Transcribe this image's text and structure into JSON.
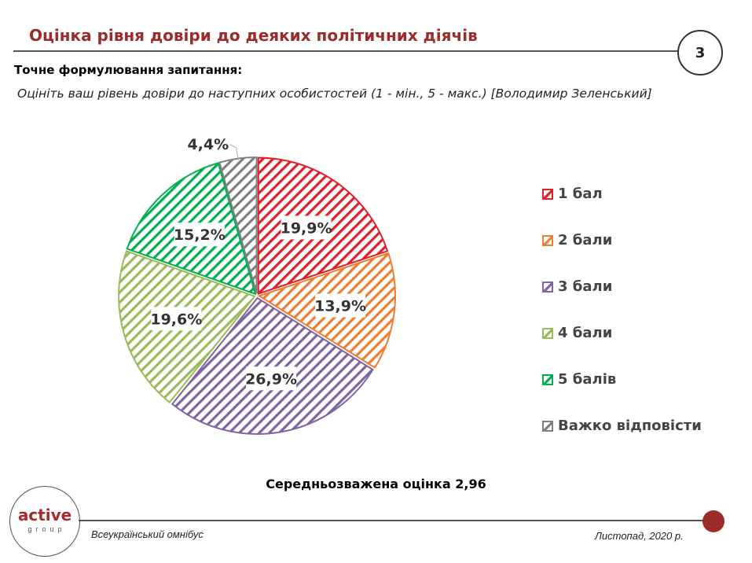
{
  "header": {
    "title": "Оцінка рівня довіри до деяких політичних діячів",
    "page_number": "3"
  },
  "question": {
    "label": "Точне формулювання запитання:",
    "text": "Оцініть ваш рівень довіри до наступних особистостей (1 - мін., 5 - макс.) [Володимир Зеленський]"
  },
  "chart_data": {
    "type": "pie",
    "categories": [
      "1 бал",
      "2 бали",
      "3 бали",
      "4 бали",
      "5 балів",
      "Важко відповісти"
    ],
    "values": [
      19.9,
      13.9,
      26.9,
      19.6,
      15.2,
      4.4
    ],
    "labels": [
      "19,9%",
      "13,9%",
      "26,9%",
      "19,6%",
      "15,2%",
      "4,4%"
    ],
    "colors": [
      "#e01f26",
      "#ed7d31",
      "#8064a2",
      "#9bbb59",
      "#00b050",
      "#7f7f7f"
    ],
    "fill": "diagonal-hatch",
    "legend_position": "right"
  },
  "summary": "Середньозважена оцінка 2,96",
  "footer": {
    "left": "Всеукраїнський омнібус",
    "right": "Листопад, 2020 р."
  },
  "logo": {
    "main": "active",
    "sub": "group"
  }
}
